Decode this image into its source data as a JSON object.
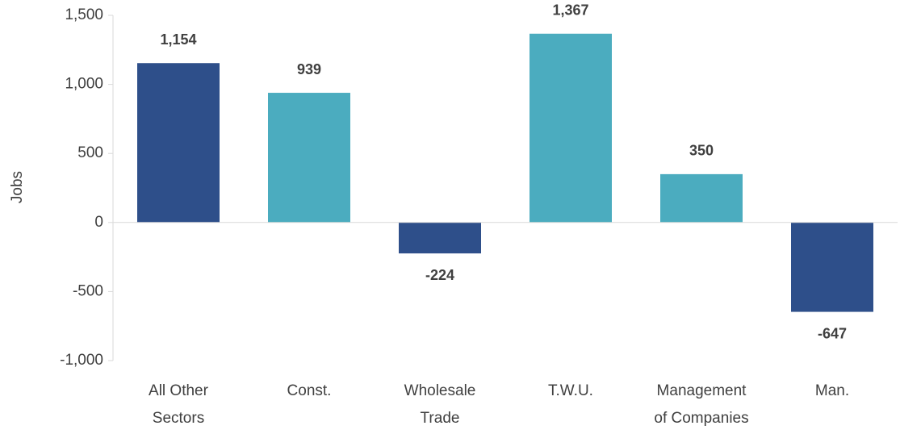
{
  "chart_data": {
    "type": "bar",
    "y_label": "Jobs",
    "categories": [
      [
        "All Other",
        "Sectors"
      ],
      [
        "Const."
      ],
      [
        "Wholesale",
        "Trade"
      ],
      [
        "T.W.U."
      ],
      [
        "Management",
        "of Companies"
      ],
      [
        "Man."
      ]
    ],
    "values": [
      1154,
      939,
      -224,
      1367,
      350,
      -647
    ],
    "value_labels": [
      "1,154",
      "939",
      "-224",
      "1,367",
      "350",
      "-647"
    ],
    "colors": [
      "#2e4f8a",
      "#4bacbf",
      "#2e4f8a",
      "#4bacbf",
      "#4bacbf",
      "#2e4f8a"
    ],
    "ylim": [
      -1000,
      1500
    ],
    "yticks": [
      {
        "value": -1000,
        "label": "-1,000"
      },
      {
        "value": -500,
        "label": "-500"
      },
      0,
      500,
      {
        "value": 1000,
        "label": "1,000"
      },
      {
        "value": 1500,
        "label": "1,500"
      }
    ]
  }
}
